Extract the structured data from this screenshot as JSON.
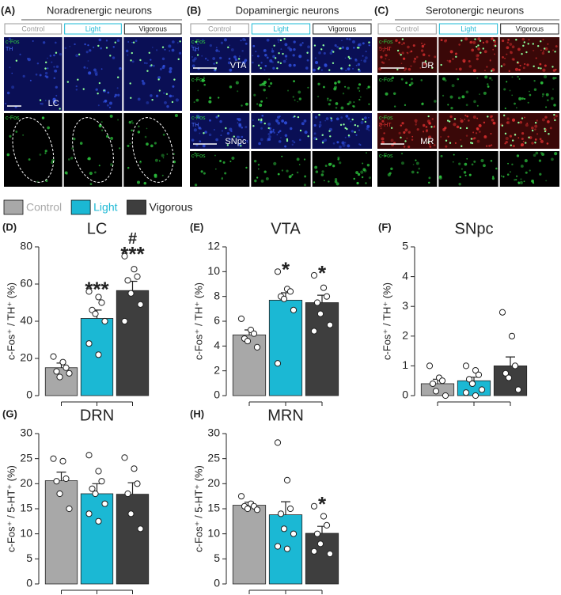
{
  "image_panels": [
    {
      "label": "(A)",
      "title": "Noradrenergic neurons",
      "conditions": [
        "Control",
        "Light",
        "Vigorous"
      ],
      "rows": [
        {
          "region": "LC",
          "channels": [
            "c-Fos",
            "TH"
          ]
        },
        {
          "channels": [
            "c-Fos"
          ]
        }
      ]
    },
    {
      "label": "(B)",
      "title": "Dopaminergic neurons",
      "conditions": [
        "Control",
        "Light",
        "Vigorous"
      ],
      "rows": [
        {
          "region": "VTA",
          "channels": [
            "c-Fos",
            "TH"
          ]
        },
        {
          "channels": [
            "c-Fos"
          ]
        },
        {
          "region": "SNpc",
          "channels": [
            "c-Fos",
            "TH"
          ]
        },
        {
          "channels": [
            "c-Fos"
          ]
        }
      ]
    },
    {
      "label": "(C)",
      "title": "Serotonergic neurons",
      "conditions": [
        "Control",
        "Light",
        "Vigorous"
      ],
      "rows": [
        {
          "region": "DR",
          "channels": [
            "c-Fos",
            "5-HT"
          ]
        },
        {
          "channels": [
            "c-Fos"
          ]
        },
        {
          "region": "MR",
          "channels": [
            "c-Fos",
            "5-HT"
          ]
        },
        {
          "channels": [
            "c-Fos"
          ]
        }
      ]
    }
  ],
  "legend": {
    "names": [
      "Control",
      "Light",
      "Vigorous"
    ],
    "colors": [
      "#a8a8a8",
      "#1bb8d4",
      "#3e3e3e"
    ]
  },
  "chart_data": [
    {
      "type": "bar",
      "label": "(D)",
      "title": "LC",
      "ylabel": "c-Fos⁺ / TH⁺ (%)",
      "categories": [
        null,
        null,
        null
      ],
      "values": [
        15,
        41.5,
        56.5
      ],
      "errors": [
        2.5,
        4.5,
        5
      ],
      "points": [
        [
          21,
          18,
          15,
          13,
          10,
          12
        ],
        [
          56,
          53,
          50,
          46,
          44,
          40,
          28,
          22
        ],
        [
          75,
          68,
          64,
          62,
          55,
          49,
          40
        ]
      ],
      "annotations": [
        {
          "category": 1,
          "text": "***"
        },
        {
          "category": 2,
          "text": "***"
        },
        {
          "category": 2,
          "text": "#"
        }
      ],
      "ylim": [
        0,
        80
      ],
      "yticks": [
        0,
        20,
        40,
        60,
        80
      ]
    },
    {
      "type": "bar",
      "label": "(E)",
      "title": "VTA",
      "ylabel": "c-Fos⁺ / TH⁺ (%)",
      "categories": [
        null,
        null,
        null
      ],
      "values": [
        4.9,
        7.7,
        7.5
      ],
      "errors": [
        0.4,
        0.6,
        0.6
      ],
      "points": [
        [
          6.2,
          5.3,
          5.0,
          4.6,
          4.4,
          3.9
        ],
        [
          10.0,
          8.6,
          8.4,
          8.0,
          7.8,
          6.9,
          2.6
        ],
        [
          9.7,
          8.7,
          8.0,
          7.5,
          6.6,
          5.7,
          5.2
        ]
      ],
      "annotations": [
        {
          "category": 1,
          "text": "*"
        },
        {
          "category": 2,
          "text": "*"
        }
      ],
      "ylim": [
        0,
        12
      ],
      "yticks": [
        0,
        2,
        4,
        6,
        8,
        10,
        12
      ]
    },
    {
      "type": "bar",
      "label": "(F)",
      "title": "SNpc",
      "ylabel": "c-Fos⁺ / TH⁺ (%)",
      "categories": [
        null,
        null,
        null
      ],
      "values": [
        0.4,
        0.5,
        1.0
      ],
      "errors": [
        0.15,
        0.12,
        0.3
      ],
      "points": [
        [
          1.0,
          0.6,
          0.5,
          0.4,
          0.15,
          0
        ],
        [
          1.0,
          0.85,
          0.7,
          0.55,
          0.4,
          0.2,
          0.1,
          0
        ],
        [
          2.8,
          2.0,
          1.0,
          0.75,
          0.6,
          0.2
        ]
      ],
      "annotations": [],
      "ylim": [
        0,
        5
      ],
      "yticks": [
        0,
        1,
        2,
        3,
        4,
        5
      ]
    },
    {
      "type": "bar",
      "label": "(G)",
      "title": "DRN",
      "ylabel": "c-Fos⁺ / 5-HT⁺ (%)",
      "categories": [
        null,
        null,
        null
      ],
      "values": [
        20.6,
        18,
        17.9
      ],
      "errors": [
        1.7,
        2,
        2.3
      ],
      "points": [
        [
          25,
          24.5,
          21,
          20.5,
          18,
          15
        ],
        [
          25.7,
          22.5,
          20.5,
          19,
          18,
          16,
          14,
          12.5
        ],
        [
          25.2,
          23,
          20,
          18,
          14,
          11
        ]
      ],
      "annotations": [],
      "ylim": [
        0,
        30
      ],
      "yticks": [
        0,
        5,
        10,
        15,
        20,
        25,
        30
      ]
    },
    {
      "type": "bar",
      "label": "(H)",
      "title": "MRN",
      "ylabel": "c-Fos⁺ / 5-HT⁺ (%)",
      "categories": [
        null,
        null,
        null
      ],
      "values": [
        15.7,
        13.8,
        10.1
      ],
      "errors": [
        0.6,
        2.6,
        1.4
      ],
      "points": [
        [
          17.5,
          16,
          15.5,
          15.5,
          15,
          14.8
        ],
        [
          28.2,
          20.7,
          15,
          14,
          11,
          10,
          7.5,
          7
        ],
        [
          15.5,
          13.5,
          11.7,
          10,
          8,
          6,
          6.5
        ]
      ],
      "annotations": [
        {
          "category": 2,
          "text": "*"
        }
      ],
      "ylim": [
        0,
        30
      ],
      "yticks": [
        0,
        5,
        10,
        15,
        20,
        25,
        30
      ]
    }
  ]
}
